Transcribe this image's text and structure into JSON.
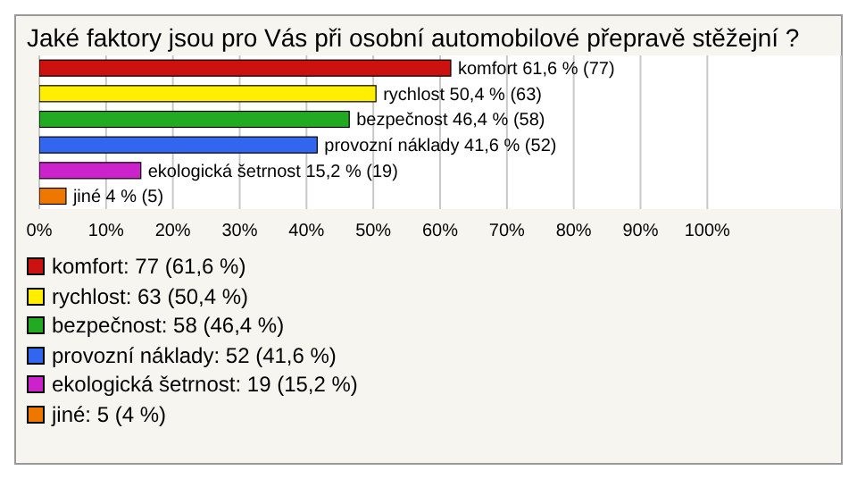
{
  "chart_data": {
    "type": "bar",
    "orientation": "horizontal",
    "stacked": true,
    "title": "Jaké faktory jsou pro Vás při osobní automobilové přepravě stěžejní ?",
    "categories": [
      null,
      null,
      null,
      null,
      null,
      null
    ],
    "series": [
      {
        "name": "komfort: 77 (61,6 %)",
        "color": "#cc1111",
        "values": [
          61.6,
          null,
          null,
          null,
          null,
          null
        ],
        "value_labels": [
          "komfort 61,6 % (77)",
          null,
          null,
          null,
          null,
          null
        ]
      },
      {
        "name": "rychlost: 63 (50,4 %)",
        "color": "#ffee00",
        "values": [
          null,
          50.4,
          null,
          null,
          null,
          null
        ],
        "value_labels": [
          null,
          "rychlost 50,4 % (63)",
          null,
          null,
          null,
          null
        ]
      },
      {
        "name": "bezpečnost: 58 (46,4 %)",
        "color": "#22aa22",
        "values": [
          null,
          null,
          46.4,
          null,
          null,
          null
        ],
        "value_labels": [
          null,
          null,
          "bezpečnost 46,4 % (58)",
          null,
          null,
          null
        ]
      },
      {
        "name": "provozní náklady: 52 (41,6 %)",
        "color": "#3366ee",
        "values": [
          null,
          null,
          null,
          41.6,
          null,
          null
        ],
        "value_labels": [
          null,
          null,
          null,
          "provozní náklady 41,6 % (52)",
          null,
          null
        ]
      },
      {
        "name": "ekologická šetrnost: 19 (15,2 %)",
        "color": "#cc22cc",
        "values": [
          null,
          null,
          null,
          null,
          15.2,
          null
        ],
        "value_labels": [
          null,
          null,
          null,
          null,
          "ekologická šetrnost 15,2 % (19)",
          null
        ]
      },
      {
        "name": "jiné: 5 (4 %)",
        "color": "#ee7700",
        "values": [
          null,
          null,
          null,
          null,
          null,
          4
        ],
        "value_labels": [
          null,
          null,
          null,
          null,
          null,
          "jiné 4 % (5)"
        ]
      }
    ],
    "xlim": [
      0,
      120
    ],
    "xticks": [
      {
        "value": 0,
        "label": "0%"
      },
      {
        "value": 10,
        "label": "10%"
      },
      {
        "value": 20,
        "label": "20%"
      },
      {
        "value": 30,
        "label": "30%"
      },
      {
        "value": 40,
        "label": "40%"
      },
      {
        "value": 50,
        "label": "50%"
      },
      {
        "value": 60,
        "label": "60%"
      },
      {
        "value": 70,
        "label": "70%"
      },
      {
        "value": 80,
        "label": "80%"
      },
      {
        "value": 90,
        "label": "90%"
      },
      {
        "value": 100,
        "label": "100%"
      }
    ],
    "grid": "x",
    "legend": "bottom left"
  }
}
